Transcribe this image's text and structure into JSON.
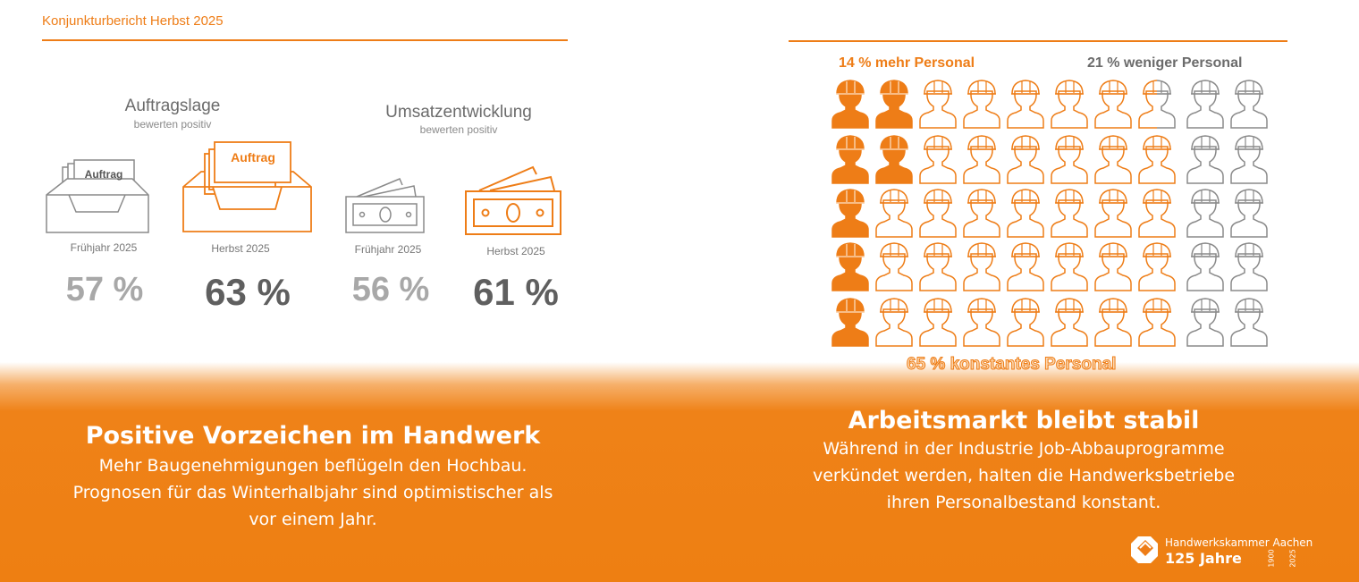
{
  "header": {
    "title": "Konjunkturbericht Herbst 2025"
  },
  "left": {
    "auftragslage": {
      "title": "Auftragslage",
      "subtitle": "bewerten positiv",
      "card_label": "Auftrag",
      "spring": {
        "period": "Frühjahr 2025",
        "value": "57 %"
      },
      "autumn": {
        "period": "Herbst 2025",
        "value": "63 %"
      }
    },
    "umsatz": {
      "title": "Umsatzentwicklung",
      "subtitle": "bewerten positiv",
      "spring": {
        "period": "Frühjahr 2025",
        "value": "56 %"
      },
      "autumn": {
        "period": "Herbst 2025",
        "value": "61 %"
      }
    },
    "headline": "Positive Vorzeichen im Handwerk",
    "text_lines": [
      "Mehr Baugenehmigungen beflügeln den Hochbau.",
      "Prognosen für das Winterhalbjahr sind optimistischer als",
      "vor einem Jahr."
    ]
  },
  "right": {
    "more_staff": "14 % mehr Personal",
    "less_staff": "21 % weniger Personal",
    "constant_staff": "65 % konstantes Personal",
    "people_grid": [
      [
        "filled",
        "filled",
        "outline",
        "outline",
        "outline",
        "outline",
        "outline",
        "split",
        "gray",
        "gray"
      ],
      [
        "filled",
        "filled",
        "outline",
        "outline",
        "outline",
        "outline",
        "outline",
        "outline",
        "gray",
        "gray"
      ],
      [
        "filled",
        "outline",
        "outline",
        "outline",
        "outline",
        "outline",
        "outline",
        "outline",
        "gray",
        "gray"
      ],
      [
        "filled",
        "outline",
        "outline",
        "outline",
        "outline",
        "outline",
        "outline",
        "outline",
        "gray",
        "gray"
      ],
      [
        "filled",
        "outline",
        "outline",
        "outline",
        "outline",
        "outline",
        "outline",
        "outline",
        "gray",
        "gray"
      ]
    ],
    "headline": "Arbeitsmarkt bleibt stabil",
    "text_lines": [
      "Während in der Industrie Job-Abbauprogramme",
      "verkündet werden, halten die Handwerksbetriebe",
      "ihren Personalbestand konstant."
    ]
  },
  "logo": {
    "name": "Handwerkskammer Aachen",
    "anniversary": "125 Jahre",
    "year_from": "1900",
    "year_to": "2025"
  },
  "colors": {
    "orange": "#ee7d17",
    "gray_text": "#6b6b6b",
    "light_gray_value": "#a8a8a8",
    "dark_gray_value": "#5f5f5f",
    "person_gray": "#8a8a8a"
  }
}
